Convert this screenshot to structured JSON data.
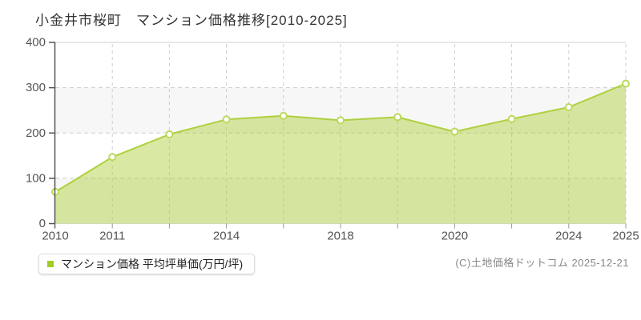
{
  "chart_data": {
    "type": "area",
    "title": "小金井市桜町　マンション価格推移[2010-2025]",
    "categories": [
      "2010",
      "2011",
      "",
      "2014",
      "",
      "2018",
      "",
      "2020",
      "",
      "2024",
      "2025"
    ],
    "series": [
      {
        "name": "マンション価格 平均坪単価(万円/坪)",
        "values": [
          70,
          147,
          197,
          230,
          238,
          228,
          235,
          203,
          231,
          257,
          309
        ]
      }
    ],
    "xlabel": "",
    "ylabel": "",
    "ylim": [
      0,
      400
    ],
    "yticks": [
      0,
      100,
      200,
      300,
      400
    ],
    "grid": true,
    "alternate_bands": [
      [
        0,
        100
      ],
      [
        200,
        300
      ]
    ],
    "legend_position": "bottom-left",
    "colors": {
      "line": "#aed03e",
      "fill": "rgba(174,208,62,0.47)",
      "marker_fill": "#ffffff",
      "marker_stroke": "#bcd95b",
      "band": "#f7f7f7",
      "grid": "#cccccc",
      "axis": "#555555",
      "x_tick": "#999999",
      "top_border": "#e0e0e0",
      "baseline": "#dddddd",
      "tick_text": "#555555"
    }
  },
  "legend": {
    "label": "マンション価格 平均坪単価(万円/坪)",
    "marker_color": "#a5cc26"
  },
  "footer": {
    "copyright": "(C)土地価格ドットコム 2025-12-21"
  }
}
